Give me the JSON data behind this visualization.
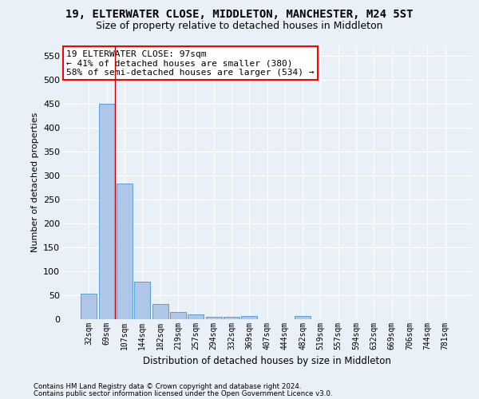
{
  "title1": "19, ELTERWATER CLOSE, MIDDLETON, MANCHESTER, M24 5ST",
  "title2": "Size of property relative to detached houses in Middleton",
  "xlabel": "Distribution of detached houses by size in Middleton",
  "ylabel": "Number of detached properties",
  "bar_labels": [
    "32sqm",
    "69sqm",
    "107sqm",
    "144sqm",
    "182sqm",
    "219sqm",
    "257sqm",
    "294sqm",
    "332sqm",
    "369sqm",
    "407sqm",
    "444sqm",
    "482sqm",
    "519sqm",
    "557sqm",
    "594sqm",
    "632sqm",
    "669sqm",
    "706sqm",
    "744sqm",
    "781sqm"
  ],
  "bar_values": [
    53,
    450,
    283,
    78,
    31,
    15,
    10,
    5,
    5,
    6,
    0,
    0,
    7,
    0,
    0,
    0,
    0,
    0,
    0,
    0,
    0
  ],
  "bar_color": "#aec6e8",
  "bar_edge_color": "#5a9fd4",
  "red_line_x": 1.45,
  "ylim": [
    0,
    570
  ],
  "yticks": [
    0,
    50,
    100,
    150,
    200,
    250,
    300,
    350,
    400,
    450,
    500,
    550
  ],
  "annotation_line1": "19 ELTERWATER CLOSE: 97sqm",
  "annotation_line2": "← 41% of detached houses are smaller (380)",
  "annotation_line3": "58% of semi-detached houses are larger (534) →",
  "footnote1": "Contains HM Land Registry data © Crown copyright and database right 2024.",
  "footnote2": "Contains public sector information licensed under the Open Government Licence v3.0.",
  "background_color": "#eaf0f8",
  "grid_color": "#d0d8e8"
}
